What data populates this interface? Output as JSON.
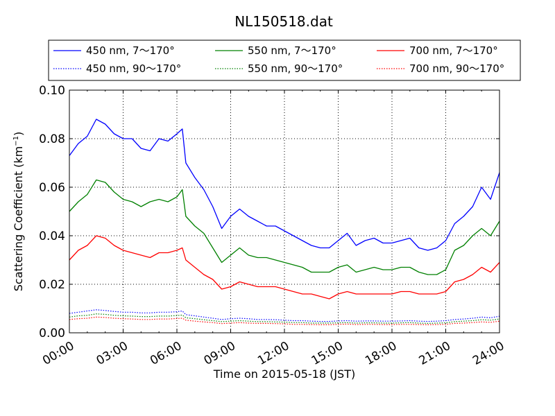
{
  "chart_data": {
    "type": "line",
    "title": "NL150518.dat",
    "xlabel": "Time on 2015-05-18 (JST)",
    "ylabel": "Scattering Coefficient (km",
    "ylabel_sup": "−1",
    "ylabel_close": ")",
    "xlim": [
      "00:00",
      "24:00"
    ],
    "ylim": [
      0,
      0.1
    ],
    "grid": true,
    "legend_position": "top",
    "x_ticks": [
      "00:00",
      "03:00",
      "06:00",
      "09:00",
      "12:00",
      "15:00",
      "18:00",
      "21:00",
      "24:00"
    ],
    "y_ticks": [
      "0.00",
      "0.02",
      "0.04",
      "0.06",
      "0.08",
      "0.10"
    ],
    "x_hours": [
      0.0,
      0.5,
      1.0,
      1.5,
      2.0,
      2.5,
      3.0,
      3.5,
      4.0,
      4.5,
      5.0,
      5.5,
      6.0,
      6.3,
      6.5,
      7.0,
      7.5,
      8.0,
      8.5,
      9.0,
      9.5,
      10.0,
      10.5,
      11.0,
      11.5,
      12.0,
      12.5,
      13.0,
      13.5,
      14.0,
      14.5,
      15.0,
      15.5,
      16.0,
      16.5,
      17.0,
      17.5,
      18.0,
      18.5,
      19.0,
      19.5,
      20.0,
      20.5,
      21.0,
      21.5,
      22.0,
      22.5,
      23.0,
      23.5,
      24.0
    ],
    "series": [
      {
        "name": "450 nm, 7～170°",
        "color": "#0000ff",
        "style": "solid",
        "values": [
          0.073,
          0.078,
          0.081,
          0.088,
          0.086,
          0.082,
          0.08,
          0.08,
          0.076,
          0.075,
          0.08,
          0.079,
          0.082,
          0.084,
          0.07,
          0.064,
          0.059,
          0.052,
          0.043,
          0.048,
          0.051,
          0.048,
          0.046,
          0.044,
          0.044,
          0.042,
          0.04,
          0.038,
          0.036,
          0.035,
          0.035,
          0.038,
          0.041,
          0.036,
          0.038,
          0.039,
          0.037,
          0.037,
          0.038,
          0.039,
          0.035,
          0.034,
          0.035,
          0.038,
          0.045,
          0.048,
          0.052,
          0.06,
          0.055,
          0.066
        ]
      },
      {
        "name": "550 nm, 7～170°",
        "color": "#008000",
        "style": "solid",
        "values": [
          0.05,
          0.054,
          0.057,
          0.063,
          0.062,
          0.058,
          0.055,
          0.054,
          0.052,
          0.054,
          0.055,
          0.054,
          0.056,
          0.059,
          0.048,
          0.044,
          0.041,
          0.035,
          0.029,
          0.032,
          0.035,
          0.032,
          0.031,
          0.031,
          0.03,
          0.029,
          0.028,
          0.027,
          0.025,
          0.025,
          0.025,
          0.027,
          0.028,
          0.025,
          0.026,
          0.027,
          0.026,
          0.026,
          0.027,
          0.027,
          0.025,
          0.024,
          0.024,
          0.026,
          0.034,
          0.036,
          0.04,
          0.043,
          0.04,
          0.046
        ]
      },
      {
        "name": "700 nm, 7～170°",
        "color": "#ff0000",
        "style": "solid",
        "values": [
          0.03,
          0.034,
          0.036,
          0.04,
          0.039,
          0.036,
          0.034,
          0.033,
          0.032,
          0.031,
          0.033,
          0.033,
          0.034,
          0.035,
          0.03,
          0.027,
          0.024,
          0.022,
          0.018,
          0.019,
          0.021,
          0.02,
          0.019,
          0.019,
          0.019,
          0.018,
          0.017,
          0.016,
          0.016,
          0.015,
          0.014,
          0.016,
          0.017,
          0.016,
          0.016,
          0.016,
          0.016,
          0.016,
          0.017,
          0.017,
          0.016,
          0.016,
          0.016,
          0.017,
          0.021,
          0.022,
          0.024,
          0.027,
          0.025,
          0.029
        ]
      },
      {
        "name": "450 nm, 90～170°",
        "color": "#0000ff",
        "style": "dotted",
        "values": [
          0.008,
          0.0085,
          0.009,
          0.0095,
          0.0092,
          0.0088,
          0.0085,
          0.0085,
          0.0082,
          0.0082,
          0.0085,
          0.0085,
          0.0087,
          0.009,
          0.0075,
          0.007,
          0.0065,
          0.006,
          0.0055,
          0.0058,
          0.006,
          0.0058,
          0.0055,
          0.0055,
          0.0054,
          0.0052,
          0.005,
          0.005,
          0.0048,
          0.0047,
          0.0047,
          0.0049,
          0.005,
          0.0048,
          0.0049,
          0.0049,
          0.0048,
          0.0048,
          0.0049,
          0.005,
          0.0048,
          0.0047,
          0.0048,
          0.005,
          0.0055,
          0.0057,
          0.006,
          0.0065,
          0.0062,
          0.0068
        ]
      },
      {
        "name": "550 nm, 90～170°",
        "color": "#008000",
        "style": "dotted",
        "values": [
          0.0065,
          0.007,
          0.0072,
          0.0078,
          0.0076,
          0.0072,
          0.007,
          0.0069,
          0.0067,
          0.0067,
          0.0069,
          0.0069,
          0.0071,
          0.0073,
          0.0062,
          0.0058,
          0.0054,
          0.005,
          0.0046,
          0.0048,
          0.005,
          0.0048,
          0.0046,
          0.0046,
          0.0045,
          0.0044,
          0.0042,
          0.0042,
          0.004,
          0.004,
          0.004,
          0.0041,
          0.0042,
          0.004,
          0.0041,
          0.0041,
          0.004,
          0.004,
          0.0041,
          0.0042,
          0.004,
          0.0039,
          0.004,
          0.0041,
          0.0046,
          0.0048,
          0.005,
          0.0054,
          0.0052,
          0.0057
        ]
      },
      {
        "name": "700 nm, 90～170°",
        "color": "#ff0000",
        "style": "dotted",
        "values": [
          0.0055,
          0.0058,
          0.006,
          0.0065,
          0.0063,
          0.006,
          0.0058,
          0.0057,
          0.0055,
          0.0055,
          0.0057,
          0.0057,
          0.0059,
          0.006,
          0.0052,
          0.0048,
          0.0045,
          0.0042,
          0.0038,
          0.004,
          0.0042,
          0.004,
          0.0039,
          0.0039,
          0.0038,
          0.0037,
          0.0035,
          0.0035,
          0.0034,
          0.0033,
          0.0033,
          0.0035,
          0.0036,
          0.0034,
          0.0035,
          0.0035,
          0.0034,
          0.0034,
          0.0035,
          0.0035,
          0.0034,
          0.0033,
          0.0034,
          0.0035,
          0.0039,
          0.004,
          0.0042,
          0.0045,
          0.0043,
          0.0048
        ]
      }
    ]
  }
}
